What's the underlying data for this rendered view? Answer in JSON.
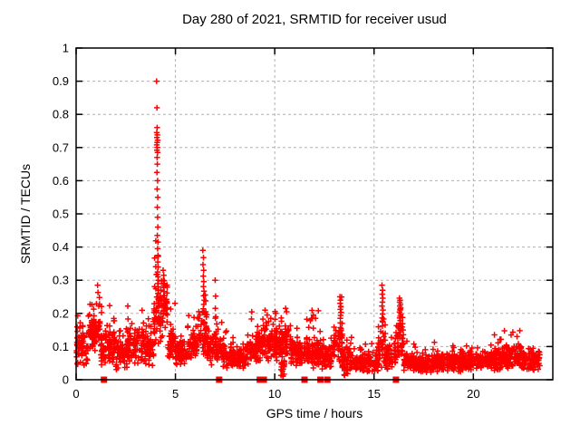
{
  "chart_data": {
    "type": "scatter",
    "title": "Day 280 of 2021, SRMTID for receiver usud",
    "xlabel": "GPS time / hours",
    "ylabel": "SRMTID / TECUs",
    "xlim": [
      0,
      24
    ],
    "ylim": [
      0,
      1
    ],
    "xticks": [
      0,
      5,
      10,
      15,
      20
    ],
    "xtick_labels": [
      "0",
      "5",
      "10",
      "15",
      "20"
    ],
    "yticks": [
      0,
      0.1,
      0.2,
      0.3,
      0.4,
      0.5,
      0.6,
      0.7,
      0.8,
      0.9,
      1
    ],
    "ytick_labels": [
      "0",
      "0.1",
      "0.2",
      "0.3",
      "0.4",
      "0.5",
      "0.6",
      "0.7",
      "0.8",
      "0.9",
      "1"
    ],
    "grid": true,
    "legend_position": "none",
    "marker": "plus",
    "marker_color": "#ff0000",
    "zero_marker_shape": "filled-square",
    "grid_color": "#b0b0b0",
    "axis_color": "#000000",
    "background_color": "#ffffff",
    "n_points_estimate": 2700,
    "bands_note": "dense 30s-cadence scatter summarized as time bands: x0/x1 hours, base = typical SRMTID level (TECUs), spread = half-width of cloud, n = approx point count",
    "bands": [
      {
        "x0": 0.0,
        "x1": 0.6,
        "base": 0.095,
        "spread": 0.05,
        "n": 70
      },
      {
        "x0": 0.6,
        "x1": 1.2,
        "base": 0.14,
        "spread": 0.055,
        "n": 70
      },
      {
        "x0": 1.2,
        "x1": 2.0,
        "base": 0.1,
        "spread": 0.05,
        "n": 90
      },
      {
        "x0": 2.0,
        "x1": 2.6,
        "base": 0.075,
        "spread": 0.04,
        "n": 66
      },
      {
        "x0": 2.6,
        "x1": 3.4,
        "base": 0.105,
        "spread": 0.05,
        "n": 90
      },
      {
        "x0": 3.4,
        "x1": 3.9,
        "base": 0.09,
        "spread": 0.045,
        "n": 55
      },
      {
        "x0": 3.9,
        "x1": 4.35,
        "base": 0.21,
        "spread": 0.09,
        "n": 60
      },
      {
        "x0": 4.35,
        "x1": 4.6,
        "base": 0.24,
        "spread": 0.07,
        "n": 30
      },
      {
        "x0": 4.6,
        "x1": 5.0,
        "base": 0.12,
        "spread": 0.055,
        "n": 45
      },
      {
        "x0": 5.0,
        "x1": 5.6,
        "base": 0.08,
        "spread": 0.035,
        "n": 66
      },
      {
        "x0": 5.6,
        "x1": 6.1,
        "base": 0.1,
        "spread": 0.045,
        "n": 55
      },
      {
        "x0": 6.1,
        "x1": 6.6,
        "base": 0.14,
        "spread": 0.065,
        "n": 55
      },
      {
        "x0": 6.6,
        "x1": 7.1,
        "base": 0.1,
        "spread": 0.05,
        "n": 55
      },
      {
        "x0": 7.1,
        "x1": 7.6,
        "base": 0.08,
        "spread": 0.04,
        "n": 55
      },
      {
        "x0": 7.6,
        "x1": 8.6,
        "base": 0.065,
        "spread": 0.03,
        "n": 110
      },
      {
        "x0": 8.6,
        "x1": 9.3,
        "base": 0.09,
        "spread": 0.045,
        "n": 77
      },
      {
        "x0": 9.3,
        "x1": 10.2,
        "base": 0.11,
        "spread": 0.05,
        "n": 100
      },
      {
        "x0": 10.3,
        "x1": 10.5,
        "base": 0.04,
        "spread": 0.03,
        "n": 20
      },
      {
        "x0": 10.2,
        "x1": 10.8,
        "base": 0.115,
        "spread": 0.055,
        "n": 66
      },
      {
        "x0": 10.8,
        "x1": 11.5,
        "base": 0.085,
        "spread": 0.04,
        "n": 77
      },
      {
        "x0": 11.5,
        "x1": 12.2,
        "base": 0.09,
        "spread": 0.05,
        "n": 77
      },
      {
        "x0": 12.2,
        "x1": 12.9,
        "base": 0.07,
        "spread": 0.035,
        "n": 77
      },
      {
        "x0": 12.9,
        "x1": 13.4,
        "base": 0.11,
        "spread": 0.06,
        "n": 55
      },
      {
        "x0": 13.4,
        "x1": 13.9,
        "base": 0.055,
        "spread": 0.04,
        "n": 70
      },
      {
        "x0": 13.9,
        "x1": 15.2,
        "base": 0.05,
        "spread": 0.028,
        "n": 140
      },
      {
        "x0": 15.2,
        "x1": 15.6,
        "base": 0.09,
        "spread": 0.05,
        "n": 45
      },
      {
        "x0": 15.6,
        "x1": 16.1,
        "base": 0.07,
        "spread": 0.035,
        "n": 55
      },
      {
        "x0": 16.1,
        "x1": 16.5,
        "base": 0.12,
        "spread": 0.06,
        "n": 45
      },
      {
        "x0": 16.5,
        "x1": 17.5,
        "base": 0.052,
        "spread": 0.028,
        "n": 110
      },
      {
        "x0": 17.5,
        "x1": 19.0,
        "base": 0.05,
        "spread": 0.026,
        "n": 165
      },
      {
        "x0": 19.0,
        "x1": 20.5,
        "base": 0.055,
        "spread": 0.028,
        "n": 165
      },
      {
        "x0": 20.5,
        "x1": 21.5,
        "base": 0.06,
        "spread": 0.032,
        "n": 110
      },
      {
        "x0": 21.5,
        "x1": 22.4,
        "base": 0.07,
        "spread": 0.038,
        "n": 100
      },
      {
        "x0": 22.4,
        "x1": 23.35,
        "base": 0.06,
        "spread": 0.032,
        "n": 100
      }
    ],
    "outliers": [
      [
        4.05,
        0.9
      ],
      [
        4.07,
        0.82
      ],
      [
        4.08,
        0.76
      ],
      [
        4.06,
        0.745
      ],
      [
        4.09,
        0.738
      ],
      [
        4.07,
        0.73
      ],
      [
        4.1,
        0.722
      ],
      [
        4.08,
        0.715
      ],
      [
        4.06,
        0.708
      ],
      [
        4.09,
        0.7
      ],
      [
        4.07,
        0.692
      ],
      [
        4.1,
        0.685
      ],
      [
        4.08,
        0.67
      ],
      [
        4.09,
        0.65
      ],
      [
        4.07,
        0.625
      ],
      [
        4.1,
        0.6
      ],
      [
        4.08,
        0.575
      ],
      [
        4.11,
        0.55
      ],
      [
        4.09,
        0.52
      ],
      [
        4.1,
        0.49
      ],
      [
        4.11,
        0.46
      ],
      [
        4.09,
        0.435
      ],
      [
        4.12,
        0.415
      ],
      [
        4.1,
        0.395
      ],
      [
        4.12,
        0.375
      ],
      [
        4.11,
        0.355
      ],
      [
        4.13,
        0.34
      ],
      [
        4.1,
        0.325
      ],
      [
        4.12,
        0.31
      ],
      [
        4.14,
        0.3
      ],
      [
        4.11,
        0.29
      ],
      [
        4.13,
        0.28
      ],
      [
        4.15,
        0.27
      ],
      [
        4.12,
        0.26
      ],
      [
        4.14,
        0.25
      ],
      [
        4.16,
        0.24
      ],
      [
        4.13,
        0.23
      ],
      [
        4.15,
        0.22
      ],
      [
        4.38,
        0.33
      ],
      [
        4.41,
        0.315
      ],
      [
        4.39,
        0.3
      ],
      [
        4.42,
        0.29
      ],
      [
        4.4,
        0.278
      ],
      [
        4.43,
        0.266
      ],
      [
        4.41,
        0.254
      ],
      [
        4.44,
        0.243
      ],
      [
        4.42,
        0.232
      ],
      [
        4.45,
        0.221
      ],
      [
        4.43,
        0.21
      ],
      [
        4.4,
        0.2
      ],
      [
        1.08,
        0.285
      ],
      [
        1.1,
        0.263
      ],
      [
        6.38,
        0.39
      ],
      [
        6.41,
        0.368
      ],
      [
        6.39,
        0.347
      ],
      [
        6.42,
        0.33
      ],
      [
        6.4,
        0.312
      ],
      [
        6.43,
        0.296
      ],
      [
        6.41,
        0.281
      ],
      [
        6.44,
        0.267
      ],
      [
        6.42,
        0.253
      ],
      [
        6.45,
        0.24
      ],
      [
        6.43,
        0.227
      ],
      [
        6.4,
        0.214
      ],
      [
        6.44,
        0.202
      ],
      [
        7.0,
        0.3
      ],
      [
        7.02,
        0.252
      ],
      [
        7.01,
        0.215
      ],
      [
        7.03,
        0.19
      ],
      [
        9.62,
        0.195
      ],
      [
        9.8,
        0.185
      ],
      [
        10.05,
        0.2
      ],
      [
        10.55,
        0.215
      ],
      [
        10.6,
        0.205
      ],
      [
        11.95,
        0.195
      ],
      [
        12.05,
        0.185
      ],
      [
        13.28,
        0.25
      ],
      [
        13.31,
        0.24
      ],
      [
        13.29,
        0.23
      ],
      [
        13.33,
        0.221
      ],
      [
        13.3,
        0.212
      ],
      [
        13.34,
        0.203
      ],
      [
        13.32,
        0.194
      ],
      [
        13.3,
        0.185
      ],
      [
        15.4,
        0.285
      ],
      [
        15.43,
        0.27
      ],
      [
        15.41,
        0.258
      ],
      [
        15.44,
        0.246
      ],
      [
        15.42,
        0.234
      ],
      [
        15.4,
        0.222
      ],
      [
        15.45,
        0.21
      ],
      [
        15.43,
        0.198
      ],
      [
        15.41,
        0.186
      ],
      [
        15.44,
        0.174
      ],
      [
        15.42,
        0.162
      ],
      [
        16.28,
        0.246
      ],
      [
        16.31,
        0.24
      ],
      [
        16.29,
        0.234
      ],
      [
        16.33,
        0.228
      ],
      [
        16.3,
        0.222
      ],
      [
        16.34,
        0.216
      ],
      [
        16.31,
        0.21
      ],
      [
        16.28,
        0.204
      ],
      [
        16.35,
        0.198
      ],
      [
        16.32,
        0.192
      ],
      [
        16.29,
        0.186
      ],
      [
        16.33,
        0.178
      ],
      [
        16.3,
        0.17
      ],
      [
        16.34,
        0.162
      ],
      [
        21.9,
        0.135
      ],
      [
        22.2,
        0.13
      ]
    ],
    "zero_marker_x": [
      1.4,
      7.2,
      9.25,
      9.45,
      11.5,
      12.3,
      12.65,
      16.1
    ]
  }
}
